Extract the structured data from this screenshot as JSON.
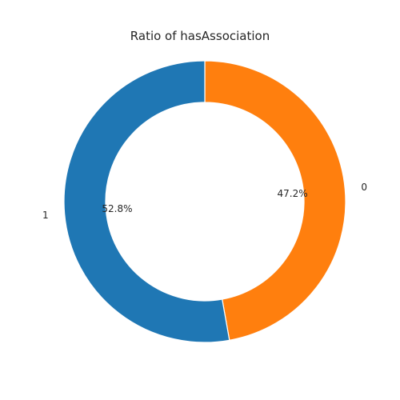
{
  "chart_data": {
    "type": "pie",
    "title": "Ratio of hasAssociation",
    "donut": true,
    "start_angle_deg": 90,
    "direction": "clockwise",
    "slices": [
      {
        "label": "0",
        "value": 47.2,
        "pct_label": "47.2%",
        "color": "#ff7f0e"
      },
      {
        "label": "1",
        "value": 52.8,
        "pct_label": "52.8%",
        "color": "#1f77b4"
      }
    ]
  }
}
